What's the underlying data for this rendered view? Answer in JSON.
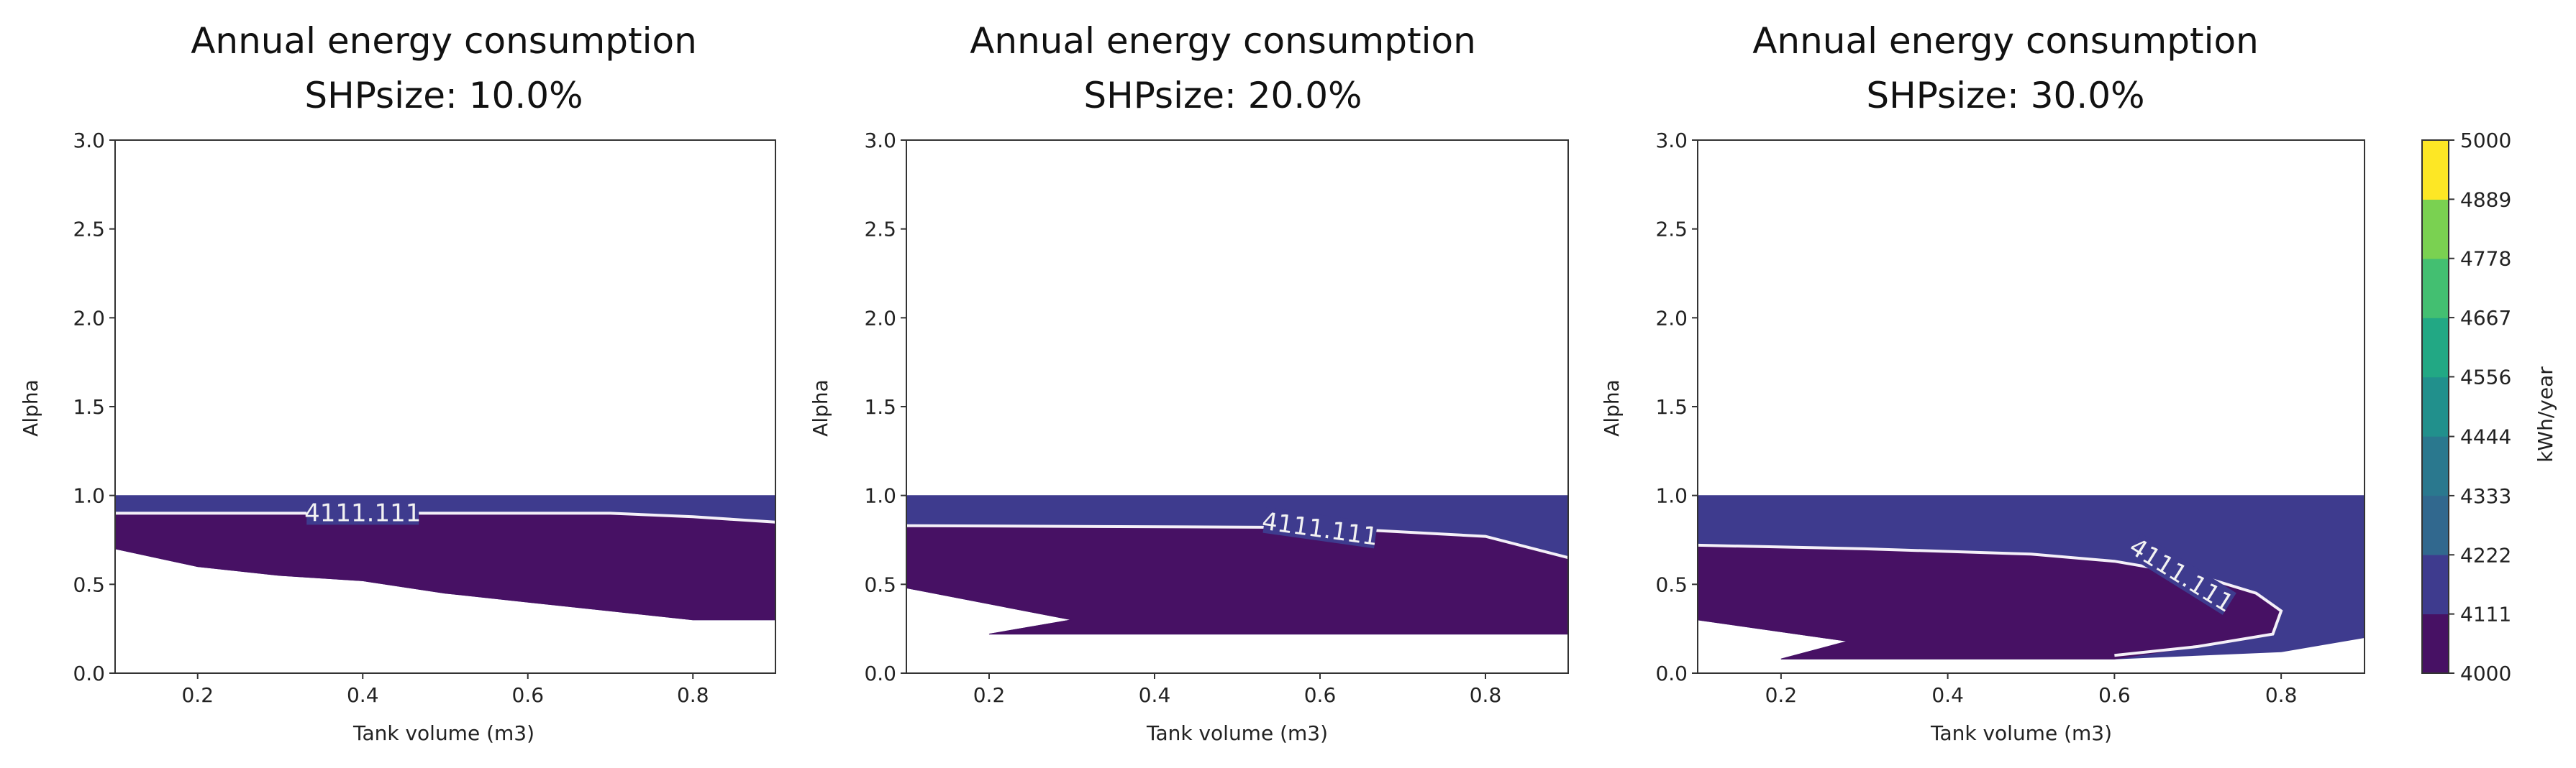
{
  "chart_data": [
    {
      "type": "contour",
      "title": [
        "Annual energy consumption",
        "SHPsize: 10.0%"
      ],
      "xlabel": "Tank volume (m3)",
      "ylabel": "Alpha",
      "xlim": [
        0.1,
        0.9
      ],
      "ylim": [
        0.0,
        3.0
      ],
      "xticks": [
        "0.2",
        "0.4",
        "0.6",
        "0.8"
      ],
      "yticks": [
        "0.0",
        "0.5",
        "1.0",
        "1.5",
        "2.0",
        "2.5",
        "3.0"
      ],
      "filled_regions": [
        {
          "level": "4111-4222",
          "color": "#3e3b8e",
          "outline": [
            [
              0.1,
              1.0
            ],
            [
              0.9,
              1.0
            ],
            [
              0.9,
              0.3
            ],
            [
              0.8,
              0.3
            ],
            [
              0.7,
              0.35
            ],
            [
              0.6,
              0.4
            ],
            [
              0.5,
              0.45
            ],
            [
              0.4,
              0.52
            ],
            [
              0.3,
              0.55
            ],
            [
              0.2,
              0.6
            ],
            [
              0.1,
              0.7
            ]
          ]
        },
        {
          "level": "4000-4111",
          "color": "#471164",
          "outline": [
            [
              0.1,
              0.9
            ],
            [
              0.7,
              0.9
            ],
            [
              0.8,
              0.88
            ],
            [
              0.9,
              0.85
            ],
            [
              0.9,
              0.3
            ],
            [
              0.8,
              0.3
            ],
            [
              0.7,
              0.35
            ],
            [
              0.6,
              0.4
            ],
            [
              0.5,
              0.45
            ],
            [
              0.4,
              0.52
            ],
            [
              0.3,
              0.55
            ],
            [
              0.2,
              0.6
            ],
            [
              0.1,
              0.7
            ]
          ]
        }
      ],
      "contour_line": {
        "label": "4111.111",
        "label_x": 0.4,
        "label_y": 0.9,
        "label_angle": 0,
        "points": [
          [
            0.1,
            0.9
          ],
          [
            0.7,
            0.9
          ],
          [
            0.8,
            0.88
          ],
          [
            0.9,
            0.85
          ]
        ]
      }
    },
    {
      "type": "contour",
      "title": [
        "Annual energy consumption",
        "SHPsize: 20.0%"
      ],
      "xlabel": "Tank volume (m3)",
      "ylabel": "Alpha",
      "xlim": [
        0.1,
        0.9
      ],
      "ylim": [
        0.0,
        3.0
      ],
      "xticks": [
        "0.2",
        "0.4",
        "0.6",
        "0.8"
      ],
      "yticks": [
        "0.0",
        "0.5",
        "1.0",
        "1.5",
        "2.0",
        "2.5",
        "3.0"
      ],
      "filled_regions": [
        {
          "level": "4111-4222",
          "color": "#3e3b8e",
          "outline": [
            [
              0.1,
              1.0
            ],
            [
              0.9,
              1.0
            ],
            [
              0.9,
              0.22
            ],
            [
              0.3,
              0.22
            ],
            [
              0.2,
              0.22
            ],
            [
              0.3,
              0.3
            ],
            [
              0.1,
              0.48
            ]
          ]
        },
        {
          "level": "4000-4111",
          "color": "#471164",
          "outline": [
            [
              0.1,
              0.83
            ],
            [
              0.6,
              0.82
            ],
            [
              0.8,
              0.77
            ],
            [
              0.9,
              0.65
            ],
            [
              0.9,
              0.22
            ],
            [
              0.2,
              0.22
            ],
            [
              0.3,
              0.3
            ],
            [
              0.1,
              0.48
            ]
          ]
        }
      ],
      "contour_line": {
        "label": "4111.111",
        "label_x": 0.6,
        "label_y": 0.81,
        "label_angle": 8,
        "points": [
          [
            0.1,
            0.83
          ],
          [
            0.6,
            0.82
          ],
          [
            0.8,
            0.77
          ],
          [
            0.9,
            0.65
          ]
        ]
      }
    },
    {
      "type": "contour",
      "title": [
        "Annual energy consumption",
        "SHPsize: 30.0%"
      ],
      "xlabel": "Tank volume (m3)",
      "ylabel": "Alpha",
      "xlim": [
        0.1,
        0.9
      ],
      "ylim": [
        0.0,
        3.0
      ],
      "xticks": [
        "0.2",
        "0.4",
        "0.6",
        "0.8"
      ],
      "yticks": [
        "0.0",
        "0.5",
        "1.0",
        "1.5",
        "2.0",
        "2.5",
        "3.0"
      ],
      "filled_regions": [
        {
          "level": "4111-4222",
          "color": "#3e3b8e",
          "outline": [
            [
              0.1,
              1.0
            ],
            [
              0.9,
              1.0
            ],
            [
              0.9,
              0.2
            ],
            [
              0.8,
              0.12
            ],
            [
              0.6,
              0.08
            ],
            [
              0.2,
              0.08
            ],
            [
              0.28,
              0.18
            ],
            [
              0.1,
              0.3
            ]
          ]
        },
        {
          "level": "4000-4111",
          "color": "#471164",
          "outline": [
            [
              0.1,
              0.72
            ],
            [
              0.3,
              0.7
            ],
            [
              0.5,
              0.67
            ],
            [
              0.6,
              0.63
            ],
            [
              0.7,
              0.55
            ],
            [
              0.77,
              0.45
            ],
            [
              0.8,
              0.35
            ],
            [
              0.79,
              0.22
            ],
            [
              0.7,
              0.15
            ],
            [
              0.6,
              0.08
            ],
            [
              0.2,
              0.08
            ],
            [
              0.28,
              0.18
            ],
            [
              0.1,
              0.3
            ]
          ]
        }
      ],
      "contour_line": {
        "label": "4111.111",
        "label_x": 0.68,
        "label_y": 0.55,
        "label_angle": 32,
        "points": [
          [
            0.1,
            0.72
          ],
          [
            0.3,
            0.7
          ],
          [
            0.5,
            0.67
          ],
          [
            0.6,
            0.63
          ],
          [
            0.7,
            0.55
          ],
          [
            0.77,
            0.45
          ],
          [
            0.8,
            0.35
          ],
          [
            0.79,
            0.22
          ],
          [
            0.7,
            0.15
          ],
          [
            0.6,
            0.1
          ]
        ]
      }
    }
  ],
  "colorbar": {
    "label": "kWh/year",
    "range": [
      4000,
      5000
    ],
    "ticks": [
      "4000",
      "4111",
      "4222",
      "4333",
      "4444",
      "4556",
      "4667",
      "4778",
      "4889",
      "5000"
    ],
    "colors": [
      "#471164",
      "#3e3b8e",
      "#31688e",
      "#2a788e",
      "#21908c",
      "#22a884",
      "#43bf71",
      "#7ad151",
      "#fde725"
    ]
  }
}
